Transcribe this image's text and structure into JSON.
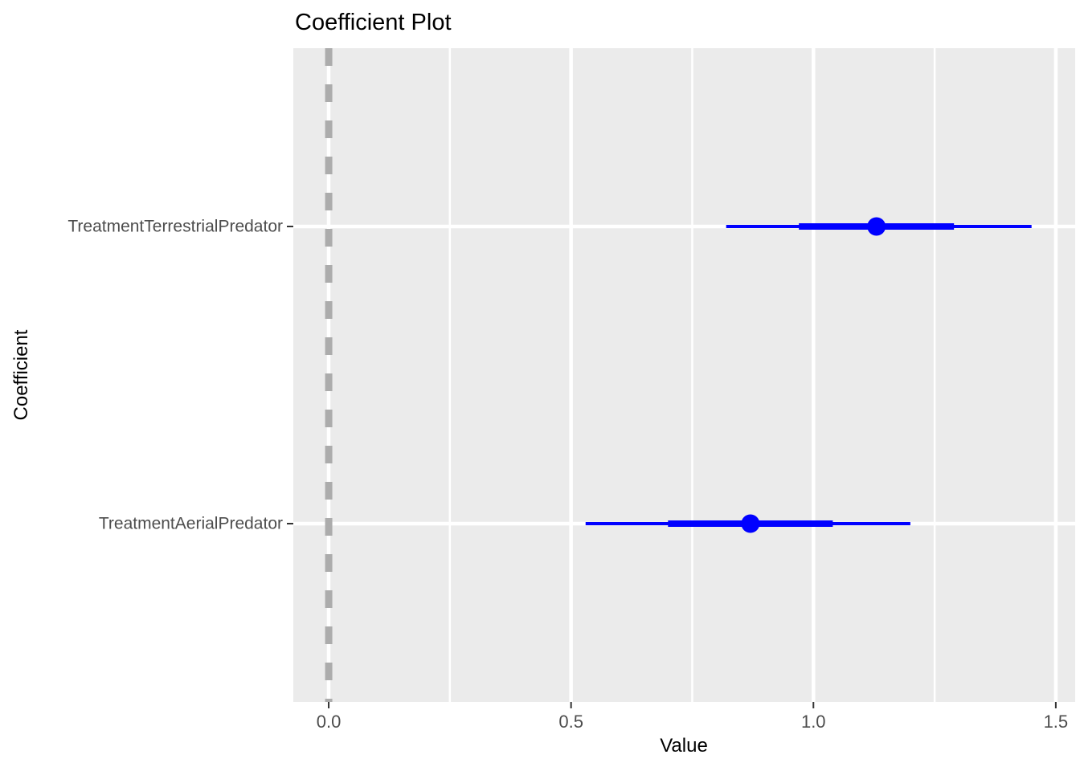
{
  "chart_data": {
    "type": "pointrange",
    "title": "Coefficient Plot",
    "xlabel": "Value",
    "ylabel": "Coefficient",
    "x_ticks": [
      0,
      0.5,
      1,
      1.5
    ],
    "x_tick_labels": [
      "0.0",
      "0.5",
      "1.0",
      "1.5"
    ],
    "x_minor_ticks": [
      0.25,
      0.75,
      1.25
    ],
    "xlim": [
      -0.073,
      1.54
    ],
    "categories": [
      "TreatmentTerrestrialPredator",
      "TreatmentAerialPredator"
    ],
    "series": [
      {
        "name": "TreatmentTerrestrialPredator",
        "estimate": 1.13,
        "inner_interval": [
          0.97,
          1.29
        ],
        "outer_interval": [
          0.82,
          1.45
        ]
      },
      {
        "name": "TreatmentAerialPredator",
        "estimate": 0.87,
        "inner_interval": [
          0.7,
          1.04
        ],
        "outer_interval": [
          0.53,
          1.2
        ]
      }
    ],
    "reference_line": {
      "x": 0,
      "style": "dashed"
    },
    "legend": "none",
    "grid": true,
    "colors": {
      "point": "#0000FF",
      "panel_background": "#EBEBEB",
      "gridline": "#FFFFFF",
      "reference_line": "#ACACAC",
      "tick_text": "#4D4D4D",
      "tick_mark": "#333333",
      "title_text": "#000000"
    }
  }
}
